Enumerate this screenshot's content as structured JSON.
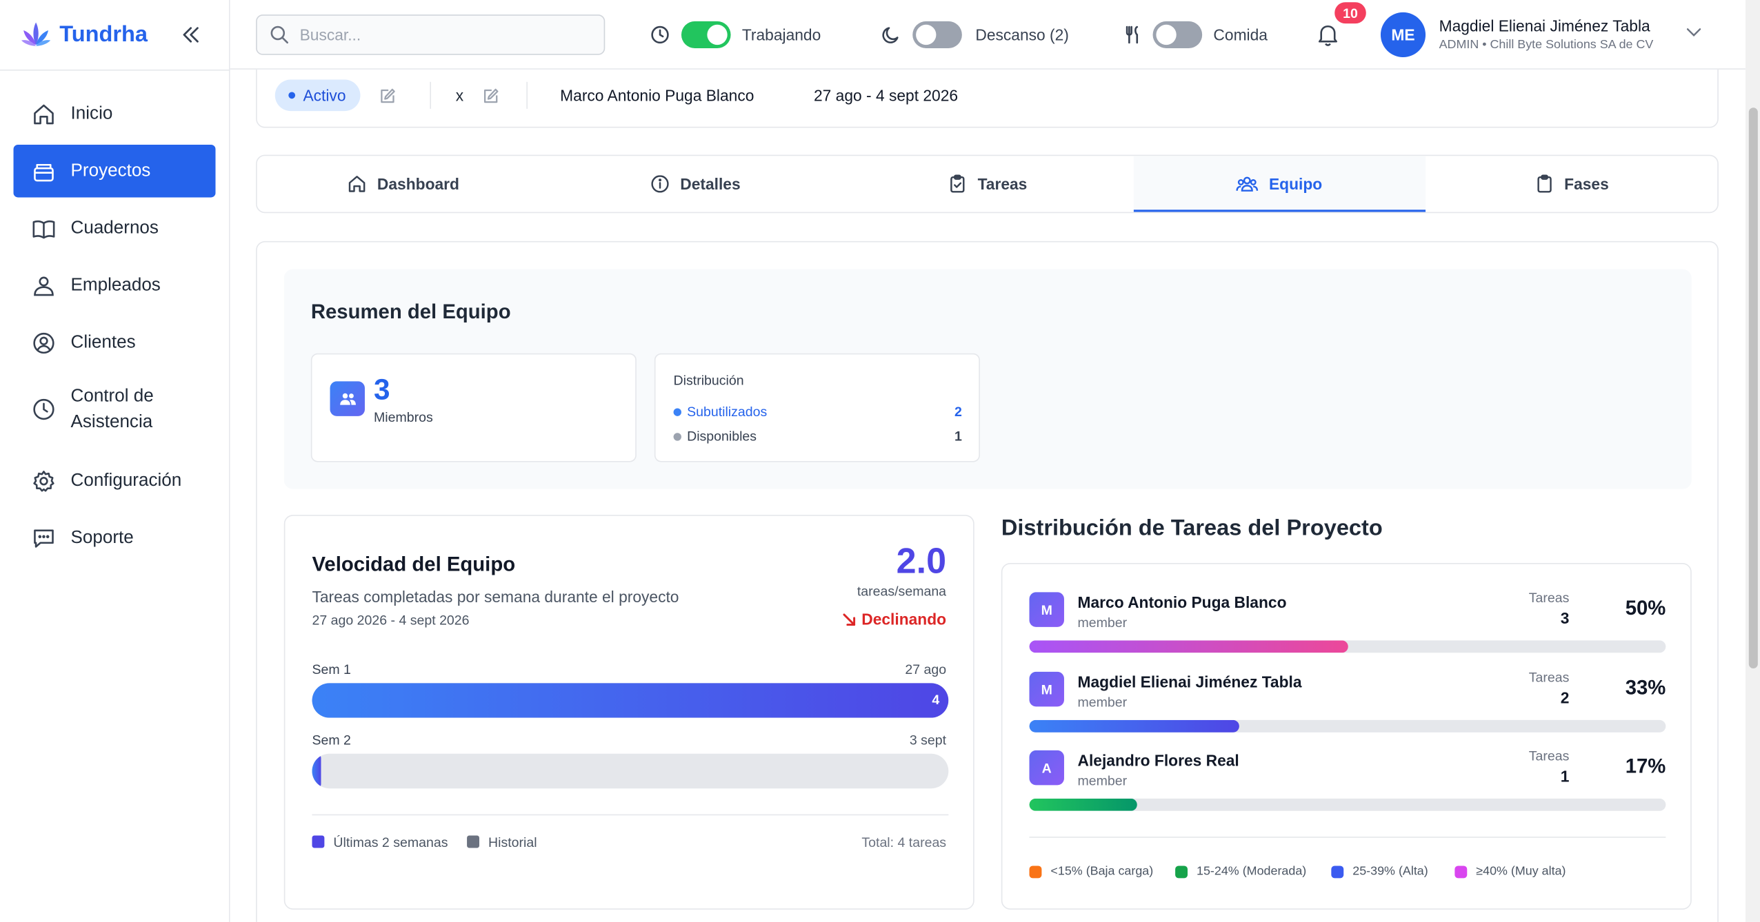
{
  "app": {
    "name": "Tundrha"
  },
  "sidebar": {
    "items": [
      {
        "label": "Inicio",
        "icon": "home-icon",
        "active": false
      },
      {
        "label": "Proyectos",
        "icon": "folder-icon",
        "active": true
      },
      {
        "label": "Cuadernos",
        "icon": "book-icon",
        "active": false
      },
      {
        "label": "Empleados",
        "icon": "users-icon",
        "active": false
      },
      {
        "label": "Clientes",
        "icon": "user-circle-icon",
        "active": false
      },
      {
        "label": "Control de Asistencia",
        "icon": "clock-icon",
        "active": false
      },
      {
        "label": "Configuración",
        "icon": "gear-icon",
        "active": false
      },
      {
        "label": "Soporte",
        "icon": "chat-icon",
        "active": false
      }
    ]
  },
  "header": {
    "search_placeholder": "Buscar...",
    "work_label": "Trabajando",
    "work_on": true,
    "break_label": "Descanso (2)",
    "break_on": false,
    "meal_label": "Comida",
    "meal_on": false,
    "notifications": "10",
    "user": {
      "initials": "ME",
      "name": "Magdiel Elienai Jiménez Tabla",
      "role": "ADMIN • Chill Byte Solutions SA de CV"
    }
  },
  "project": {
    "status": "Activo",
    "field": "x",
    "owner": "Marco Antonio Puga Blanco",
    "dates": "27 ago - 4 sept 2026"
  },
  "tabs": [
    {
      "label": "Dashboard",
      "icon": "home-icon",
      "active": false
    },
    {
      "label": "Detalles",
      "icon": "info-icon",
      "active": false
    },
    {
      "label": "Tareas",
      "icon": "clipboard-check-icon",
      "active": false
    },
    {
      "label": "Equipo",
      "icon": "team-icon",
      "active": true
    },
    {
      "label": "Fases",
      "icon": "clipboard-icon",
      "active": false
    }
  ],
  "summary": {
    "title": "Resumen del Equipo",
    "members_count": "3",
    "members_label": "Miembros",
    "distribution_title": "Distribución",
    "underused_label": "Subutilizados",
    "underused_value": "2",
    "available_label": "Disponibles",
    "available_value": "1"
  },
  "velocity": {
    "title": "Velocidad del Equipo",
    "subtitle": "Tareas completadas por semana durante el proyecto",
    "range": "27 ago 2026 - 4 sept 2026",
    "value": "2.0",
    "unit": "tareas/semana",
    "trend": "Declinando",
    "weeks": [
      {
        "label": "Sem 1",
        "date": "27 ago",
        "value": 4,
        "display": "4"
      },
      {
        "label": "Sem 2",
        "date": "3 sept",
        "value": 0,
        "display": ""
      }
    ],
    "max": 4,
    "legend_recent": "Últimas 2 semanas",
    "legend_history": "Historial",
    "total": "Total: 4 tareas"
  },
  "task_distribution": {
    "title": "Distribución de Tareas del Proyecto",
    "tasks_label": "Tareas",
    "members": [
      {
        "initial": "M",
        "name": "Marco Antonio Puga Blanco",
        "role": "member",
        "tasks": "3",
        "percent": "50%",
        "fraction": 0.5,
        "color": "linear-gradient(90deg, #a855f7, #ec4899)"
      },
      {
        "initial": "M",
        "name": "Magdiel Elienai Jiménez Tabla",
        "role": "member",
        "tasks": "2",
        "percent": "33%",
        "fraction": 0.33,
        "color": "linear-gradient(90deg, #3b82f6, #4f46e5)"
      },
      {
        "initial": "A",
        "name": "Alejandro Flores Real",
        "role": "member",
        "tasks": "1",
        "percent": "17%",
        "fraction": 0.17,
        "color": "linear-gradient(90deg, #22c55e, #059669)"
      }
    ],
    "legend": [
      {
        "label": "<15% (Baja carga)",
        "color": "#f97316"
      },
      {
        "label": "15-24% (Moderada)",
        "color": "#16a34a"
      },
      {
        "label": "25-39% (Alta)",
        "color": "#3b5bf0"
      },
      {
        "label": "≥40% (Muy alta)",
        "color": "#d946ef"
      }
    ]
  }
}
